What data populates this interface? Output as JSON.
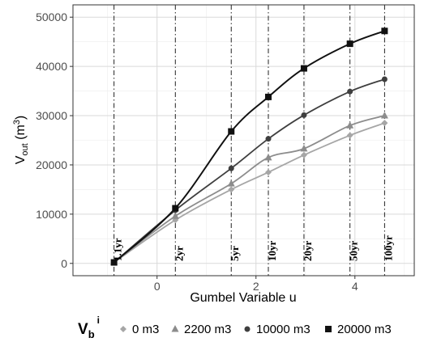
{
  "chart_data": {
    "type": "scatter",
    "xlabel": "Gumbel Variable u",
    "ylabel": "V",
    "ylabel_sub": "out",
    "ylabel_unit": " (m",
    "ylabel_unit_sup": "3",
    "ylabel_close": ")",
    "xlim": [
      -1.7,
      5.2
    ],
    "ylim": [
      -2500,
      52500
    ],
    "x_ticks": [
      0,
      2,
      4
    ],
    "x_tick_labels": [
      "0",
      "2",
      "4"
    ],
    "y_ticks": [
      0,
      10000,
      20000,
      30000,
      40000,
      50000
    ],
    "y_tick_labels": [
      "0",
      "10000",
      "20000",
      "30000",
      "40000",
      "50000"
    ],
    "grid": true,
    "return_periods": [
      {
        "u": -0.87,
        "label": "1.1yr"
      },
      {
        "u": 0.37,
        "label": "2yr"
      },
      {
        "u": 1.5,
        "label": "5yr"
      },
      {
        "u": 2.25,
        "label": "10yr"
      },
      {
        "u": 2.97,
        "label": "20yr"
      },
      {
        "u": 3.9,
        "label": "50yr"
      },
      {
        "u": 4.6,
        "label": "100yr"
      }
    ],
    "legend_title": "V",
    "legend_title_sub": "b",
    "legend_title_sup": "i",
    "legend_position": "bottom",
    "series": [
      {
        "name": "0 m3",
        "marker": "diamond",
        "color": "#a6a6a6",
        "x": [
          -0.87,
          0.37,
          1.5,
          2.25,
          2.97,
          3.9,
          4.6
        ],
        "y": [
          200,
          8800,
          15000,
          18500,
          22000,
          26000,
          28500
        ]
      },
      {
        "name": "2200 m3",
        "marker": "triangle",
        "color": "#8c8c8c",
        "x": [
          -0.87,
          0.37,
          1.5,
          2.25,
          2.97,
          3.9,
          4.6
        ],
        "y": [
          200,
          9600,
          16200,
          21500,
          23300,
          28000,
          30000
        ]
      },
      {
        "name": "10000 m3",
        "marker": "circle",
        "color": "#3f3f3f",
        "x": [
          -0.87,
          0.37,
          1.5,
          2.25,
          2.97,
          3.9,
          4.6
        ],
        "y": [
          200,
          10800,
          19300,
          25300,
          30100,
          34900,
          37400
        ]
      },
      {
        "name": "20000 m3",
        "marker": "square",
        "color": "#111111",
        "x": [
          -0.87,
          0.37,
          1.5,
          2.25,
          2.97,
          3.9,
          4.6
        ],
        "y": [
          200,
          11200,
          26800,
          33800,
          39600,
          44600,
          47200
        ]
      }
    ]
  }
}
